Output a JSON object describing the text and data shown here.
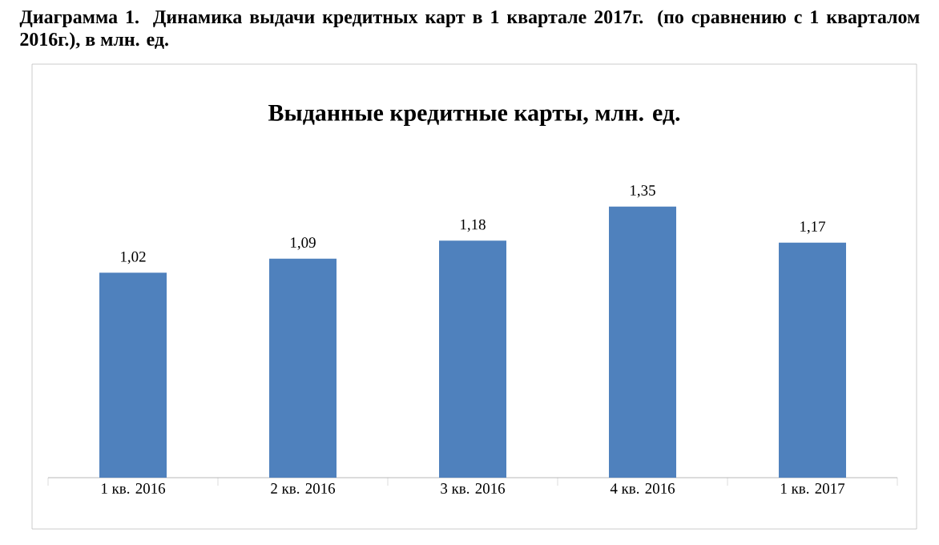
{
  "chart_data": {
    "type": "bar",
    "title": "Выданные кредитные карты, млн. ед.",
    "annotations": [
      "Диаграмма 1. Динамика выдачи кредитных карт в 1 квартале 2017г. (по сравнению с 1 кварталом 2016г.), в млн. ед."
    ],
    "categories": [
      "1 кв. 2016",
      "2 кв. 2016",
      "3 кв. 2016",
      "4 кв. 2016",
      "1 кв. 2017"
    ],
    "values": [
      1.02,
      1.09,
      1.18,
      1.35,
      1.17
    ],
    "value_labels": [
      "1,02",
      "1,09",
      "1,18",
      "1,35",
      "1,17"
    ],
    "color": "#4f81bd"
  }
}
